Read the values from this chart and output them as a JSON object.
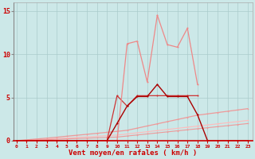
{
  "xlabel": "Vent moyen/en rafales ( km/h )",
  "x": [
    0,
    1,
    2,
    3,
    4,
    5,
    6,
    7,
    8,
    9,
    10,
    11,
    12,
    13,
    14,
    15,
    16,
    17,
    18,
    19,
    20,
    21,
    22,
    23
  ],
  "line_pale_pink": [
    0,
    0,
    0,
    0,
    0,
    0,
    0,
    0,
    0,
    0,
    0,
    11.2,
    11.5,
    6.8,
    14.5,
    11.1,
    10.8,
    13.0,
    6.5,
    null,
    null,
    null,
    null,
    null
  ],
  "line_med_pink": [
    0,
    0,
    0,
    0,
    0,
    0,
    0,
    0,
    0,
    0,
    5.2,
    4.0,
    5.2,
    5.2,
    5.2,
    5.2,
    5.2,
    5.2,
    5.2,
    null,
    null,
    null,
    null,
    null
  ],
  "line_dark_red": [
    0,
    0,
    0,
    0,
    0,
    0,
    0,
    0,
    0,
    0,
    2.0,
    4.0,
    5.1,
    5.1,
    6.5,
    5.1,
    5.1,
    5.1,
    3.0,
    0,
    0,
    0,
    0,
    0
  ],
  "line_slope1": [
    0,
    0.06,
    0.13,
    0.19,
    0.26,
    0.32,
    0.39,
    0.45,
    0.52,
    0.58,
    0.65,
    0.78,
    0.91,
    1.04,
    1.17,
    1.3,
    1.43,
    1.56,
    1.69,
    1.82,
    1.95,
    2.08,
    2.21,
    2.34
  ],
  "line_slope2": [
    0,
    0.1,
    0.2,
    0.3,
    0.4,
    0.52,
    0.63,
    0.74,
    0.85,
    0.97,
    1.08,
    1.2,
    1.45,
    1.7,
    1.95,
    2.2,
    2.45,
    2.7,
    2.95,
    3.1,
    3.25,
    3.4,
    3.55,
    3.7
  ],
  "line_slope3": [
    0,
    0.04,
    0.08,
    0.12,
    0.17,
    0.21,
    0.25,
    0.29,
    0.34,
    0.38,
    0.42,
    0.54,
    0.66,
    0.78,
    0.9,
    1.02,
    1.14,
    1.26,
    1.38,
    1.5,
    1.62,
    1.74,
    1.86,
    1.98
  ],
  "background_color": "#cce8e8",
  "grid_color": "#aacccc",
  "color_dark_red": "#aa0000",
  "color_medium_red": "#cc3333",
  "color_light_pink": "#ee8888",
  "color_pale_pink": "#ffaaaa",
  "color_slope1": "#ffbbbb",
  "color_slope2": "#ee9999",
  "color_slope3": "#dd7777",
  "ylim": [
    0,
    16
  ],
  "xlim": [
    -0.5,
    23.5
  ]
}
